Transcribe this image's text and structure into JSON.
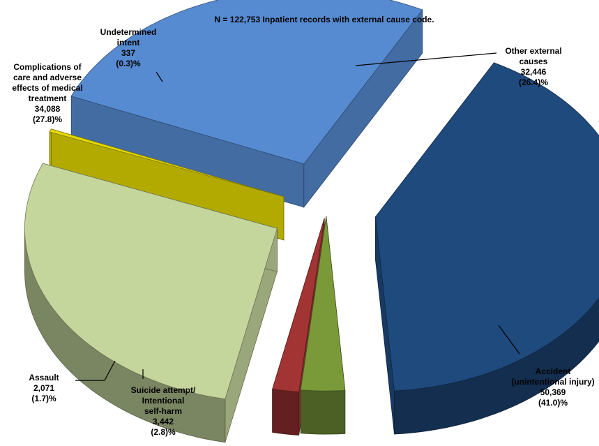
{
  "chart_data": {
    "type": "pie",
    "title": "N = 122,753  Inpatient records with external cause code.",
    "three_d": true,
    "exploded": true,
    "total": 122753,
    "slices": [
      {
        "name_lines": [
          "Accident",
          "(unintentional injury)"
        ],
        "count_label": "50,369",
        "pct_label": "(41.0)%",
        "value": 50369,
        "percent": 41.0,
        "color": "#1F4A7E"
      },
      {
        "name_lines": [
          "Suicide attempt/",
          "Intentional",
          "self-harm"
        ],
        "count_label": "3,442",
        "pct_label": "(2.8)%",
        "value": 3442,
        "percent": 2.8,
        "color": "#7A9A3A"
      },
      {
        "name_lines": [
          "Assault"
        ],
        "count_label": "2,071",
        "pct_label": "(1.7)%",
        "value": 2071,
        "percent": 1.7,
        "color": "#A23434"
      },
      {
        "name_lines": [
          "Complications of",
          "care and adverse",
          "effects of medical",
          "treatment"
        ],
        "count_label": "34,088",
        "pct_label": "(27.8)%",
        "value": 34088,
        "percent": 27.8,
        "color": "#C5D69C"
      },
      {
        "name_lines": [
          "Undetermined",
          "intent"
        ],
        "count_label": "337",
        "pct_label": "(0.3)%",
        "value": 337,
        "percent": 0.3,
        "color": "#E6DA00"
      },
      {
        "name_lines": [
          "Other external",
          "causes"
        ],
        "count_label": "32,446",
        "pct_label": "(26.4)%",
        "value": 32446,
        "percent": 26.4,
        "color": "#568BD1"
      }
    ],
    "legend": "none",
    "grid": false
  }
}
